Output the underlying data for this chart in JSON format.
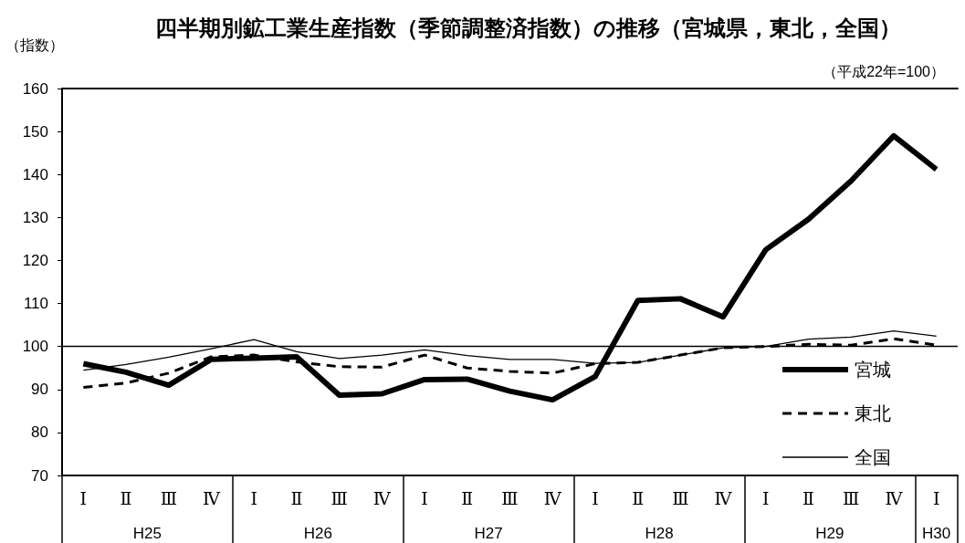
{
  "chart_data": {
    "type": "line",
    "title": "四半期別鉱工業生産指数（季節調整済指数）の推移（宮城県，東北，全国）",
    "subtitle": "（平成22年=100）",
    "ylabel": "（指数）",
    "categories": [
      "Ⅰ",
      "Ⅱ",
      "Ⅲ",
      "Ⅳ",
      "Ⅰ",
      "Ⅱ",
      "Ⅲ",
      "Ⅳ",
      "Ⅰ",
      "Ⅱ",
      "Ⅲ",
      "Ⅳ",
      "Ⅰ",
      "Ⅱ",
      "Ⅲ",
      "Ⅳ",
      "Ⅰ",
      "Ⅱ",
      "Ⅲ",
      "Ⅳ",
      "Ⅰ"
    ],
    "annotations": [
      "H25",
      "H26",
      "H27",
      "H28",
      "H29",
      "H30"
    ],
    "series": [
      {
        "name": "宮城",
        "color": "#000000",
        "line_style": "solid",
        "values": [
          96,
          94,
          91,
          97,
          97.3,
          97.6,
          88.7,
          89,
          92.3,
          92.4,
          89.6,
          87.6,
          93,
          110.7,
          111.1,
          106.9,
          122.5,
          129.6,
          138.5,
          149,
          141.2
        ]
      },
      {
        "name": "東北",
        "color": "#000000",
        "line_style": "dashed",
        "values": [
          90.5,
          91.5,
          93.8,
          97.6,
          98,
          96.4,
          95.3,
          95.2,
          98,
          95,
          94.2,
          93.8,
          96,
          96.3,
          98,
          99.7,
          100,
          100.5,
          100.3,
          101.8,
          100.3
        ]
      },
      {
        "name": "全国",
        "color": "#000000",
        "line_style": "solid",
        "values": [
          94.5,
          95.8,
          97.5,
          99.5,
          101.6,
          98.8,
          97.2,
          98,
          99.2,
          97.9,
          97,
          97,
          96.1,
          96.3,
          98,
          99.7,
          100,
          101.7,
          102.2,
          103.6,
          102.4
        ]
      }
    ],
    "ylim": [
      70,
      160
    ],
    "yticks": [
      70,
      80,
      90,
      100,
      110,
      120,
      130,
      140,
      150,
      160
    ],
    "ref_lines": [
      {
        "axis": "y",
        "value": 100,
        "color": "#000000"
      }
    ],
    "legend": "bottom right",
    "marker": "none",
    "grid": false
  }
}
